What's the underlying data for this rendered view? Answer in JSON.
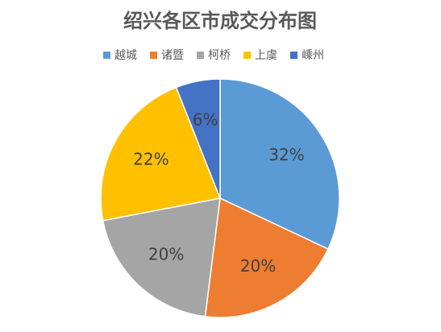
{
  "chart_data": {
    "type": "pie",
    "title": "绍兴各区市成交分布图",
    "categories": [
      "越城",
      "诸暨",
      "柯桥",
      "上虞",
      "嵊州"
    ],
    "values": [
      32,
      20,
      20,
      22,
      6
    ],
    "value_labels": [
      "32%",
      "20%",
      "20%",
      "22%",
      "6%"
    ],
    "colors": [
      "#5b9bd5",
      "#ed7d31",
      "#a5a5a5",
      "#ffc000",
      "#4472c4"
    ],
    "legend": "top"
  }
}
